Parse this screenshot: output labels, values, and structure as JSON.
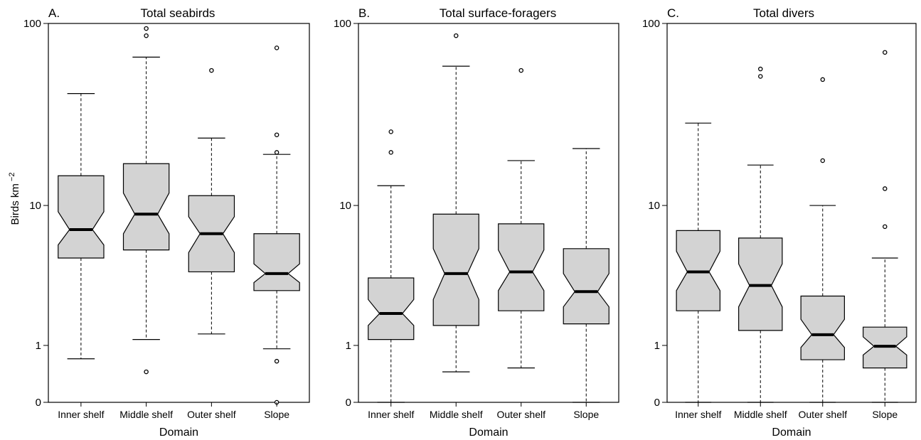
{
  "chart_data": [
    {
      "type": "boxplot",
      "letter": "A.",
      "title": "Total seabirds",
      "xlabel": "Domain",
      "ylabel": "Birds km",
      "ylabel_exp": "−2",
      "yticks": [
        "100",
        "10",
        "1",
        "0"
      ],
      "categories": [
        "Inner shelf",
        "Middle shelf",
        "Outer shelf",
        "Slope"
      ],
      "box_fill": "#d3d3d3",
      "boxes": [
        {
          "whisker_low": 0.7,
          "q1": 4.8,
          "median": 7.2,
          "q3": 14.8,
          "whisker_high": 42,
          "notch_low": 5.8,
          "notch_high": 9.2,
          "outliers": []
        },
        {
          "whisker_low": 1.15,
          "q1": 5.4,
          "median": 8.9,
          "q3": 17.3,
          "whisker_high": 66,
          "notch_low": 6.8,
          "notch_high": 11.8,
          "outliers": [
            0.45,
            86,
            94
          ]
        },
        {
          "whisker_low": 1.3,
          "q1": 3.9,
          "median": 6.8,
          "q3": 11.4,
          "whisker_high": 24,
          "notch_low": 5.2,
          "notch_high": 8.6,
          "outliers": [
            56
          ]
        },
        {
          "whisker_low": 0.92,
          "q1": 2.9,
          "median": 3.8,
          "q3": 6.8,
          "whisker_high": 19.5,
          "notch_low": 3.3,
          "notch_high": 4.4,
          "outliers": [
            0,
            0.65,
            20,
            25,
            74
          ]
        }
      ]
    },
    {
      "type": "boxplot",
      "letter": "B.",
      "title": "Total surface-foragers",
      "xlabel": "Domain",
      "yticks": [
        "100",
        "10",
        "1",
        "0"
      ],
      "categories": [
        "Inner shelf",
        "Middle shelf",
        "Outer shelf",
        "Slope"
      ],
      "box_fill": "#d3d3d3",
      "boxes": [
        {
          "whisker_low": 0,
          "q1": 1.15,
          "median": 1.95,
          "q3": 3.55,
          "whisker_high": 13,
          "notch_low": 1.55,
          "notch_high": 2.5,
          "outliers": [
            20,
            26
          ]
        },
        {
          "whisker_low": 0.45,
          "q1": 1.55,
          "median": 3.8,
          "q3": 8.9,
          "whisker_high": 59,
          "notch_low": 2.5,
          "notch_high": 5.5,
          "outliers": [
            86
          ]
        },
        {
          "whisker_low": 0.52,
          "q1": 2.05,
          "median": 3.9,
          "q3": 7.8,
          "whisker_high": 18,
          "notch_low": 2.9,
          "notch_high": 5.4,
          "outliers": [
            56
          ]
        },
        {
          "whisker_low": 0,
          "q1": 1.6,
          "median": 2.85,
          "q3": 5.5,
          "whisker_high": 21,
          "notch_low": 2.2,
          "notch_high": 3.8,
          "outliers": []
        }
      ]
    },
    {
      "type": "boxplot",
      "letter": "C.",
      "title": "Total divers",
      "xlabel": "Domain",
      "yticks": [
        "100",
        "10",
        "1",
        "0"
      ],
      "categories": [
        "Inner shelf",
        "Middle shelf",
        "Outer shelf",
        "Slope"
      ],
      "box_fill": "#d3d3d3",
      "boxes": [
        {
          "whisker_low": 0,
          "q1": 2.05,
          "median": 3.9,
          "q3": 7.1,
          "whisker_high": 29,
          "notch_low": 2.9,
          "notch_high": 5.3,
          "outliers": []
        },
        {
          "whisker_low": 0,
          "q1": 1.4,
          "median": 3.15,
          "q3": 6.4,
          "whisker_high": 17,
          "notch_low": 2.2,
          "notch_high": 4.4,
          "outliers": [
            52,
            57
          ]
        },
        {
          "whisker_low": 0,
          "q1": 0.68,
          "median": 1.28,
          "q3": 2.65,
          "whisker_high": 10,
          "notch_low": 0.95,
          "notch_high": 1.75,
          "outliers": [
            18,
            50
          ]
        },
        {
          "whisker_low": 0,
          "q1": 0.52,
          "median": 0.98,
          "q3": 1.5,
          "whisker_high": 4.8,
          "notch_low": 0.78,
          "notch_high": 1.22,
          "outliers": [
            7.5,
            12.5,
            70
          ]
        }
      ]
    }
  ]
}
